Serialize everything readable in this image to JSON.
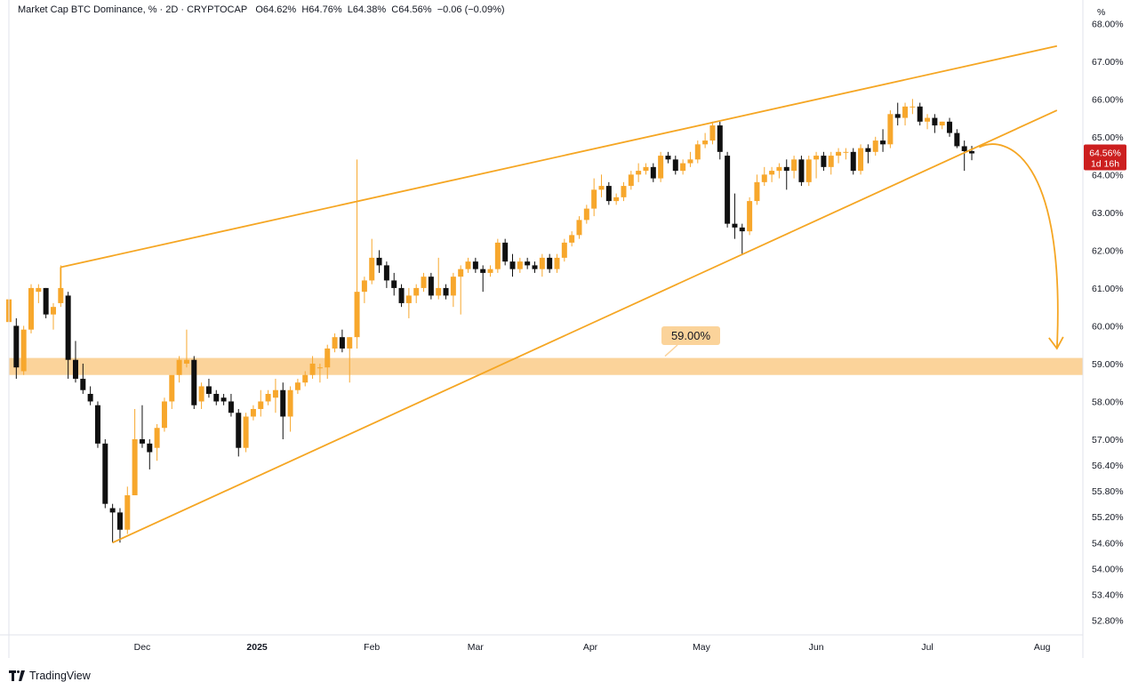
{
  "header": {
    "symbol": "Market Cap BTC Dominance, % · 2D · CRYPTOCAP",
    "o_label": "O",
    "o_value": "64.62%",
    "h_label": "H",
    "h_value": "64.76%",
    "l_label": "L",
    "l_value": "64.38%",
    "c_label": "C",
    "c_value": "64.56%",
    "change": "−0.06 (−0.09%)"
  },
  "price_axis": {
    "unit": "%",
    "current_price": "64.56%",
    "countdown": "1d 16h"
  },
  "branding": {
    "name": "TradingView",
    "logo_icon": "tradingview-logo-icon"
  },
  "colors": {
    "bull": "#f7a72c",
    "bear": "#101010",
    "trendline": "#f5a623",
    "zone": "#fbd39a",
    "price_tag": "#cc1f1f"
  },
  "chart_data": {
    "type": "candlestick",
    "title": "Market Cap BTC Dominance, % · 2D · CRYPTOCAP",
    "x_ticks": [
      "Dec",
      "2025",
      "Feb",
      "Mar",
      "Apr",
      "May",
      "Jun",
      "Jul",
      "Aug"
    ],
    "y_ticks": [
      "68.00%",
      "67.00%",
      "66.00%",
      "65.00%",
      "64.00%",
      "63.00%",
      "62.00%",
      "61.00%",
      "60.00%",
      "59.00%",
      "58.00%",
      "57.00%",
      "56.40%",
      "55.80%",
      "55.20%",
      "54.60%",
      "54.00%",
      "53.40%",
      "52.80%"
    ],
    "y_range": [
      52.5,
      68.1
    ],
    "x_range": [
      "2024-10-26",
      "2025-08-12"
    ],
    "candles": [
      {
        "date": "2024-10-26",
        "o": 60.1,
        "h": 60.8,
        "l": 59.5,
        "c": 60.7
      },
      {
        "date": "2024-10-28",
        "o": 60.0,
        "h": 60.2,
        "l": 58.6,
        "c": 58.9
      },
      {
        "date": "2024-10-30",
        "o": 58.8,
        "h": 60.0,
        "l": 58.7,
        "c": 59.9
      },
      {
        "date": "2024-11-01",
        "o": 59.9,
        "h": 61.1,
        "l": 59.8,
        "c": 61.0
      },
      {
        "date": "2024-11-03",
        "o": 60.9,
        "h": 61.1,
        "l": 60.6,
        "c": 61.0
      },
      {
        "date": "2024-11-05",
        "o": 61.0,
        "h": 61.0,
        "l": 60.2,
        "c": 60.3
      },
      {
        "date": "2024-11-07",
        "o": 60.3,
        "h": 60.6,
        "l": 59.9,
        "c": 60.5
      },
      {
        "date": "2024-11-09",
        "o": 60.6,
        "h": 61.6,
        "l": 60.5,
        "c": 61.0
      },
      {
        "date": "2024-11-11",
        "o": 60.8,
        "h": 60.9,
        "l": 58.6,
        "c": 59.1
      },
      {
        "date": "2024-11-13",
        "o": 59.1,
        "h": 59.6,
        "l": 58.5,
        "c": 58.6
      },
      {
        "date": "2024-11-15",
        "o": 58.6,
        "h": 59.0,
        "l": 58.2,
        "c": 58.3
      },
      {
        "date": "2024-11-17",
        "o": 58.2,
        "h": 58.4,
        "l": 57.9,
        "c": 58.0
      },
      {
        "date": "2024-11-19",
        "o": 57.9,
        "h": 58.0,
        "l": 56.8,
        "c": 56.9
      },
      {
        "date": "2024-11-21",
        "o": 56.9,
        "h": 57.0,
        "l": 55.4,
        "c": 55.5
      },
      {
        "date": "2024-11-23",
        "o": 55.4,
        "h": 55.5,
        "l": 54.6,
        "c": 55.3
      },
      {
        "date": "2024-11-25",
        "o": 55.3,
        "h": 55.4,
        "l": 54.6,
        "c": 54.9
      },
      {
        "date": "2024-11-27",
        "o": 54.9,
        "h": 55.9,
        "l": 54.8,
        "c": 55.7
      },
      {
        "date": "2024-11-29",
        "o": 55.7,
        "h": 57.8,
        "l": 55.7,
        "c": 57.0
      },
      {
        "date": "2024-12-01",
        "o": 57.0,
        "h": 57.9,
        "l": 56.8,
        "c": 56.9
      },
      {
        "date": "2024-12-03",
        "o": 56.9,
        "h": 57.0,
        "l": 56.3,
        "c": 56.7
      },
      {
        "date": "2024-12-05",
        "o": 56.8,
        "h": 57.4,
        "l": 56.5,
        "c": 57.3
      },
      {
        "date": "2024-12-07",
        "o": 57.3,
        "h": 58.1,
        "l": 57.2,
        "c": 58.0
      },
      {
        "date": "2024-12-09",
        "o": 58.0,
        "h": 58.6,
        "l": 57.8,
        "c": 58.7
      },
      {
        "date": "2024-12-11",
        "o": 58.7,
        "h": 59.2,
        "l": 58.5,
        "c": 59.1
      },
      {
        "date": "2024-12-13",
        "o": 59.0,
        "h": 59.9,
        "l": 58.9,
        "c": 59.1
      },
      {
        "date": "2024-12-15",
        "o": 59.1,
        "h": 59.2,
        "l": 57.8,
        "c": 57.9
      },
      {
        "date": "2024-12-17",
        "o": 58.0,
        "h": 58.5,
        "l": 57.8,
        "c": 58.4
      },
      {
        "date": "2024-12-19",
        "o": 58.4,
        "h": 58.6,
        "l": 58.1,
        "c": 58.2
      },
      {
        "date": "2024-12-21",
        "o": 58.2,
        "h": 58.3,
        "l": 57.9,
        "c": 58.0
      },
      {
        "date": "2024-12-23",
        "o": 58.1,
        "h": 58.2,
        "l": 57.9,
        "c": 58.0
      },
      {
        "date": "2024-12-25",
        "o": 58.0,
        "h": 58.2,
        "l": 57.6,
        "c": 57.7
      },
      {
        "date": "2024-12-27",
        "o": 57.7,
        "h": 57.8,
        "l": 56.6,
        "c": 56.8
      },
      {
        "date": "2024-12-29",
        "o": 56.8,
        "h": 57.7,
        "l": 56.7,
        "c": 57.6
      },
      {
        "date": "2024-12-31",
        "o": 57.6,
        "h": 57.9,
        "l": 57.5,
        "c": 57.8
      },
      {
        "date": "2025-01-02",
        "o": 57.8,
        "h": 58.3,
        "l": 57.6,
        "c": 58.0
      },
      {
        "date": "2025-01-04",
        "o": 58.0,
        "h": 58.3,
        "l": 57.9,
        "c": 58.2
      },
      {
        "date": "2025-01-06",
        "o": 58.1,
        "h": 58.6,
        "l": 57.7,
        "c": 58.3
      },
      {
        "date": "2025-01-08",
        "o": 58.3,
        "h": 58.5,
        "l": 57.0,
        "c": 57.6
      },
      {
        "date": "2025-01-10",
        "o": 57.6,
        "h": 58.4,
        "l": 57.2,
        "c": 58.3
      },
      {
        "date": "2025-01-12",
        "o": 58.3,
        "h": 58.6,
        "l": 58.2,
        "c": 58.5
      },
      {
        "date": "2025-01-14",
        "o": 58.5,
        "h": 58.8,
        "l": 58.4,
        "c": 58.7
      },
      {
        "date": "2025-01-16",
        "o": 58.7,
        "h": 59.2,
        "l": 58.6,
        "c": 59.0
      },
      {
        "date": "2025-01-18",
        "o": 58.9,
        "h": 59.0,
        "l": 58.5,
        "c": 58.9
      },
      {
        "date": "2025-01-20",
        "o": 58.9,
        "h": 59.5,
        "l": 58.6,
        "c": 59.4
      },
      {
        "date": "2025-01-22",
        "o": 59.4,
        "h": 59.8,
        "l": 59.3,
        "c": 59.7
      },
      {
        "date": "2025-01-24",
        "o": 59.7,
        "h": 59.9,
        "l": 59.3,
        "c": 59.4
      },
      {
        "date": "2025-01-26",
        "o": 59.4,
        "h": 59.7,
        "l": 58.5,
        "c": 59.7
      },
      {
        "date": "2025-01-28",
        "o": 59.7,
        "h": 64.4,
        "l": 59.4,
        "c": 60.9
      },
      {
        "date": "2025-01-30",
        "o": 60.9,
        "h": 61.3,
        "l": 60.6,
        "c": 61.2
      },
      {
        "date": "2025-02-01",
        "o": 61.2,
        "h": 62.3,
        "l": 61.1,
        "c": 61.8
      },
      {
        "date": "2025-02-03",
        "o": 61.8,
        "h": 62.0,
        "l": 61.4,
        "c": 61.6
      },
      {
        "date": "2025-02-05",
        "o": 61.6,
        "h": 61.7,
        "l": 61.0,
        "c": 61.2
      },
      {
        "date": "2025-02-07",
        "o": 61.2,
        "h": 61.4,
        "l": 60.8,
        "c": 61.0
      },
      {
        "date": "2025-02-09",
        "o": 61.0,
        "h": 61.1,
        "l": 60.5,
        "c": 60.6
      },
      {
        "date": "2025-02-11",
        "o": 60.6,
        "h": 61.0,
        "l": 60.2,
        "c": 60.8
      },
      {
        "date": "2025-02-13",
        "o": 60.8,
        "h": 61.1,
        "l": 60.6,
        "c": 61.0
      },
      {
        "date": "2025-02-15",
        "o": 61.0,
        "h": 61.4,
        "l": 60.9,
        "c": 61.3
      },
      {
        "date": "2025-02-17",
        "o": 61.3,
        "h": 61.4,
        "l": 60.7,
        "c": 60.8
      },
      {
        "date": "2025-02-19",
        "o": 60.8,
        "h": 61.8,
        "l": 60.7,
        "c": 61.0
      },
      {
        "date": "2025-02-21",
        "o": 61.0,
        "h": 61.1,
        "l": 60.7,
        "c": 60.8
      },
      {
        "date": "2025-02-23",
        "o": 60.8,
        "h": 61.4,
        "l": 60.5,
        "c": 61.3
      },
      {
        "date": "2025-02-25",
        "o": 61.3,
        "h": 61.6,
        "l": 60.3,
        "c": 61.5
      },
      {
        "date": "2025-02-27",
        "o": 61.5,
        "h": 61.8,
        "l": 61.4,
        "c": 61.7
      },
      {
        "date": "2025-03-01",
        "o": 61.7,
        "h": 61.8,
        "l": 61.4,
        "c": 61.5
      },
      {
        "date": "2025-03-03",
        "o": 61.5,
        "h": 61.6,
        "l": 60.9,
        "c": 61.4
      },
      {
        "date": "2025-03-05",
        "o": 61.4,
        "h": 61.6,
        "l": 61.3,
        "c": 61.5
      },
      {
        "date": "2025-03-07",
        "o": 61.5,
        "h": 62.3,
        "l": 61.4,
        "c": 62.2
      },
      {
        "date": "2025-03-09",
        "o": 62.2,
        "h": 62.3,
        "l": 61.6,
        "c": 61.7
      },
      {
        "date": "2025-03-11",
        "o": 61.7,
        "h": 61.9,
        "l": 61.3,
        "c": 61.5
      },
      {
        "date": "2025-03-13",
        "o": 61.5,
        "h": 61.8,
        "l": 61.4,
        "c": 61.7
      },
      {
        "date": "2025-03-15",
        "o": 61.7,
        "h": 61.8,
        "l": 61.5,
        "c": 61.6
      },
      {
        "date": "2025-03-17",
        "o": 61.6,
        "h": 61.7,
        "l": 61.4,
        "c": 61.5
      },
      {
        "date": "2025-03-19",
        "o": 61.5,
        "h": 61.9,
        "l": 61.3,
        "c": 61.8
      },
      {
        "date": "2025-03-21",
        "o": 61.8,
        "h": 61.9,
        "l": 61.4,
        "c": 61.5
      },
      {
        "date": "2025-03-23",
        "o": 61.5,
        "h": 61.9,
        "l": 61.4,
        "c": 61.8
      },
      {
        "date": "2025-03-25",
        "o": 61.8,
        "h": 62.3,
        "l": 61.7,
        "c": 62.2
      },
      {
        "date": "2025-03-27",
        "o": 62.2,
        "h": 62.5,
        "l": 62.1,
        "c": 62.4
      },
      {
        "date": "2025-03-29",
        "o": 62.4,
        "h": 62.9,
        "l": 62.3,
        "c": 62.8
      },
      {
        "date": "2025-03-31",
        "o": 62.8,
        "h": 63.2,
        "l": 62.7,
        "c": 63.1
      },
      {
        "date": "2025-04-02",
        "o": 63.1,
        "h": 63.9,
        "l": 62.9,
        "c": 63.6
      },
      {
        "date": "2025-04-04",
        "o": 63.6,
        "h": 64.0,
        "l": 63.4,
        "c": 63.7
      },
      {
        "date": "2025-04-06",
        "o": 63.7,
        "h": 63.8,
        "l": 63.2,
        "c": 63.3
      },
      {
        "date": "2025-04-08",
        "o": 63.3,
        "h": 63.5,
        "l": 63.2,
        "c": 63.4
      },
      {
        "date": "2025-04-10",
        "o": 63.4,
        "h": 63.8,
        "l": 63.3,
        "c": 63.7
      },
      {
        "date": "2025-04-12",
        "o": 63.7,
        "h": 64.1,
        "l": 63.6,
        "c": 64.0
      },
      {
        "date": "2025-04-14",
        "o": 64.0,
        "h": 64.3,
        "l": 63.8,
        "c": 64.1
      },
      {
        "date": "2025-04-16",
        "o": 64.1,
        "h": 64.3,
        "l": 64.0,
        "c": 64.2
      },
      {
        "date": "2025-04-18",
        "o": 64.2,
        "h": 64.3,
        "l": 63.8,
        "c": 63.9
      },
      {
        "date": "2025-04-20",
        "o": 63.9,
        "h": 64.6,
        "l": 63.8,
        "c": 64.5
      },
      {
        "date": "2025-04-22",
        "o": 64.5,
        "h": 64.6,
        "l": 64.3,
        "c": 64.4
      },
      {
        "date": "2025-04-24",
        "o": 64.4,
        "h": 64.5,
        "l": 64.0,
        "c": 64.1
      },
      {
        "date": "2025-04-26",
        "o": 64.1,
        "h": 64.4,
        "l": 64.0,
        "c": 64.3
      },
      {
        "date": "2025-04-28",
        "o": 64.3,
        "h": 64.6,
        "l": 64.2,
        "c": 64.4
      },
      {
        "date": "2025-04-30",
        "o": 64.4,
        "h": 64.9,
        "l": 64.3,
        "c": 64.8
      },
      {
        "date": "2025-05-02",
        "o": 64.8,
        "h": 65.1,
        "l": 64.7,
        "c": 64.9
      },
      {
        "date": "2025-05-04",
        "o": 64.9,
        "h": 65.4,
        "l": 64.8,
        "c": 65.3
      },
      {
        "date": "2025-05-06",
        "o": 65.3,
        "h": 65.4,
        "l": 64.4,
        "c": 64.6
      },
      {
        "date": "2025-05-08",
        "o": 64.5,
        "h": 64.6,
        "l": 62.6,
        "c": 62.7
      },
      {
        "date": "2025-05-10",
        "o": 62.7,
        "h": 63.5,
        "l": 62.3,
        "c": 62.6
      },
      {
        "date": "2025-05-12",
        "o": 62.6,
        "h": 62.7,
        "l": 61.9,
        "c": 62.5
      },
      {
        "date": "2025-05-14",
        "o": 62.5,
        "h": 63.4,
        "l": 62.4,
        "c": 63.3
      },
      {
        "date": "2025-05-16",
        "o": 63.3,
        "h": 64.0,
        "l": 63.2,
        "c": 63.8
      },
      {
        "date": "2025-05-18",
        "o": 63.8,
        "h": 64.2,
        "l": 63.7,
        "c": 64.0
      },
      {
        "date": "2025-05-20",
        "o": 64.0,
        "h": 64.2,
        "l": 63.8,
        "c": 64.1
      },
      {
        "date": "2025-05-22",
        "o": 64.1,
        "h": 64.3,
        "l": 63.9,
        "c": 64.2
      },
      {
        "date": "2025-05-24",
        "o": 64.2,
        "h": 64.4,
        "l": 63.6,
        "c": 64.1
      },
      {
        "date": "2025-05-26",
        "o": 64.1,
        "h": 64.5,
        "l": 63.9,
        "c": 64.4
      },
      {
        "date": "2025-05-28",
        "o": 64.4,
        "h": 64.5,
        "l": 63.7,
        "c": 63.8
      },
      {
        "date": "2025-05-30",
        "o": 63.8,
        "h": 64.5,
        "l": 63.7,
        "c": 64.4
      },
      {
        "date": "2025-06-01",
        "o": 64.4,
        "h": 64.6,
        "l": 63.9,
        "c": 64.5
      },
      {
        "date": "2025-06-03",
        "o": 64.5,
        "h": 64.6,
        "l": 64.1,
        "c": 64.2
      },
      {
        "date": "2025-06-05",
        "o": 64.2,
        "h": 64.6,
        "l": 64.0,
        "c": 64.5
      },
      {
        "date": "2025-06-07",
        "o": 64.5,
        "h": 64.7,
        "l": 64.3,
        "c": 64.6
      },
      {
        "date": "2025-06-09",
        "o": 64.6,
        "h": 64.7,
        "l": 64.4,
        "c": 64.6
      },
      {
        "date": "2025-06-11",
        "o": 64.6,
        "h": 64.7,
        "l": 64.0,
        "c": 64.1
      },
      {
        "date": "2025-06-13",
        "o": 64.1,
        "h": 64.8,
        "l": 64.0,
        "c": 64.7
      },
      {
        "date": "2025-06-15",
        "o": 64.7,
        "h": 64.8,
        "l": 64.3,
        "c": 64.6
      },
      {
        "date": "2025-06-17",
        "o": 64.6,
        "h": 65.0,
        "l": 64.5,
        "c": 64.9
      },
      {
        "date": "2025-06-19",
        "o": 64.9,
        "h": 65.2,
        "l": 64.6,
        "c": 64.8
      },
      {
        "date": "2025-06-21",
        "o": 64.8,
        "h": 65.7,
        "l": 64.7,
        "c": 65.6
      },
      {
        "date": "2025-06-23",
        "o": 65.6,
        "h": 65.9,
        "l": 65.3,
        "c": 65.5
      },
      {
        "date": "2025-06-25",
        "o": 65.5,
        "h": 65.9,
        "l": 65.3,
        "c": 65.8
      },
      {
        "date": "2025-06-27",
        "o": 65.8,
        "h": 66.0,
        "l": 65.6,
        "c": 65.8
      },
      {
        "date": "2025-06-29",
        "o": 65.8,
        "h": 65.9,
        "l": 65.3,
        "c": 65.4
      },
      {
        "date": "2025-07-01",
        "o": 65.4,
        "h": 65.6,
        "l": 65.2,
        "c": 65.5
      },
      {
        "date": "2025-07-03",
        "o": 65.5,
        "h": 65.6,
        "l": 65.1,
        "c": 65.3
      },
      {
        "date": "2025-07-05",
        "o": 65.3,
        "h": 65.4,
        "l": 65.2,
        "c": 65.4
      },
      {
        "date": "2025-07-07",
        "o": 65.4,
        "h": 65.5,
        "l": 65.0,
        "c": 65.1
      },
      {
        "date": "2025-07-09",
        "o": 65.1,
        "h": 65.2,
        "l": 64.7,
        "c": 64.75
      },
      {
        "date": "2025-07-11",
        "o": 64.75,
        "h": 64.9,
        "l": 64.1,
        "c": 64.62
      },
      {
        "date": "2025-07-13",
        "o": 64.62,
        "h": 64.76,
        "l": 64.38,
        "c": 64.56
      }
    ],
    "annotations": {
      "support_zone": {
        "low": 58.7,
        "high": 59.15,
        "label": "59.00%"
      },
      "upper_trendline": [
        {
          "date": "2024-11-09",
          "value": 61.55
        },
        {
          "date": "2025-08-05",
          "value": 67.4
        }
      ],
      "lower_trendline": [
        {
          "date": "2024-11-23",
          "value": 54.6
        },
        {
          "date": "2025-08-05",
          "value": 65.7
        }
      ],
      "wedge_start_connector": [
        {
          "date": "2024-11-09",
          "value": 61.55
        },
        {
          "date": "2024-11-09",
          "value": 60.75
        }
      ],
      "projection_arrow": {
        "from": {
          "date": "2025-07-15",
          "value": 64.72
        },
        "to": {
          "date": "2025-08-05",
          "value": 59.4
        }
      }
    }
  }
}
